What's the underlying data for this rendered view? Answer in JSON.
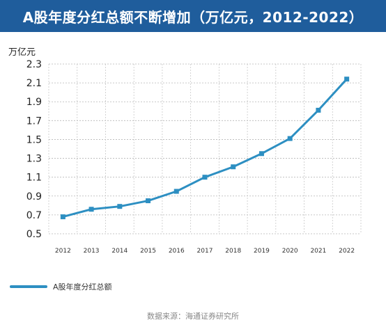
{
  "title": "A股年度分红总额不断增加（万亿元，2012-2022）",
  "unit": "万亿元",
  "legend": "A股年度分红总额",
  "source": "数据来源：海通证券研究所",
  "colors": {
    "title_bg": "#1f5d9c",
    "series": "#2d8fc2"
  },
  "chart_data": {
    "type": "line",
    "title": "A股年度分红总额不断增加（万亿元，2012-2022）",
    "ylabel": "万亿元",
    "x": [
      "2012",
      "2013",
      "2014",
      "2015",
      "2016",
      "2017",
      "2018",
      "2019",
      "2020",
      "2021",
      "2022"
    ],
    "yticks": [
      "2.3",
      "2.1",
      "1.9",
      "1.7",
      "1.5",
      "1.3",
      "1.1",
      "0.9",
      "0.7",
      "0.5"
    ],
    "ylim": [
      0.5,
      2.3
    ],
    "grid": true,
    "legend_position": "bottom-left",
    "series": [
      {
        "name": "A股年度分红总额",
        "values": [
          0.68,
          0.76,
          0.79,
          0.85,
          0.95,
          1.1,
          1.21,
          1.35,
          1.51,
          1.81,
          2.14
        ]
      }
    ]
  }
}
